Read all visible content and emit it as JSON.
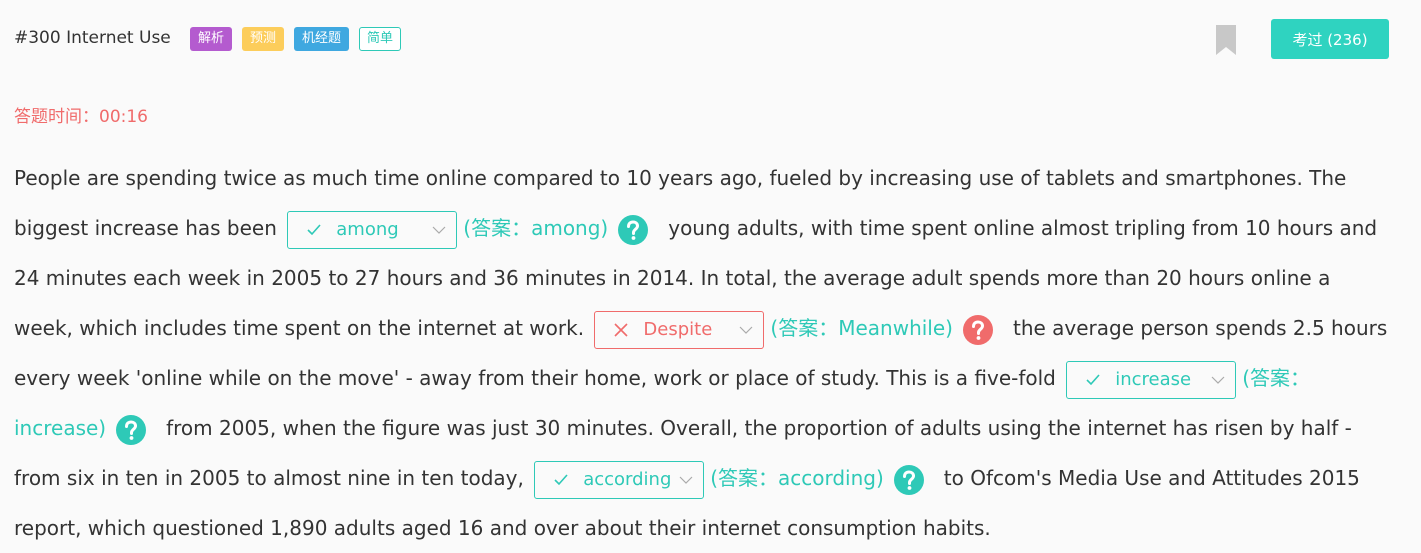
{
  "header": {
    "title": "#300 Internet Use",
    "tags": [
      {
        "text": "解析",
        "color": "#b45bcf",
        "style": "filled"
      },
      {
        "text": "预测",
        "color": "#fccd5b",
        "style": "filled"
      },
      {
        "text": "机经题",
        "color": "#3fa8e0",
        "style": "filled"
      },
      {
        "text": "简单",
        "color": "#2ec9b7",
        "style": "outline"
      }
    ],
    "button": "考过 (236)"
  },
  "timer": "答题时间：00:16",
  "passage": [
    {
      "kind": "text",
      "text": "People are spending twice as much time online compared to 10 years ago, fueled by increasing use of tablets and smartphones. The biggest increase has been"
    },
    {
      "kind": "blank",
      "selected": "among",
      "correct": true,
      "answer_label": "(答案：among)"
    },
    {
      "kind": "text",
      "text": "young adults, with time spent online almost tripling from 10 hours and 24 minutes each week in 2005 to 27 hours and 36 minutes in 2014. In total, the average adult spends more than 20 hours online a week, which includes time spent on the internet at work."
    },
    {
      "kind": "blank",
      "selected": "Despite",
      "correct": false,
      "answer_label": "(答案：Meanwhile)"
    },
    {
      "kind": "text",
      "text": "the average person spends 2.5 hours every week 'online while on the move' - away from their home, work or place of study. This is a five-fold"
    },
    {
      "kind": "blank",
      "selected": "increase",
      "correct": true,
      "answer_label": "(答案：increase)"
    },
    {
      "kind": "text",
      "text": "from 2005, when the figure was just 30 minutes. Overall, the proportion of adults using the internet has risen by half - from six in ten in 2005 to almost nine in ten today,"
    },
    {
      "kind": "blank",
      "selected": "according",
      "correct": true,
      "answer_label": "(答案：according)"
    },
    {
      "kind": "text",
      "text": "to Ofcom's Media Use and Attitudes 2015 report, which questioned 1,890 adults aged 16 and over about their internet consumption habits."
    }
  ]
}
